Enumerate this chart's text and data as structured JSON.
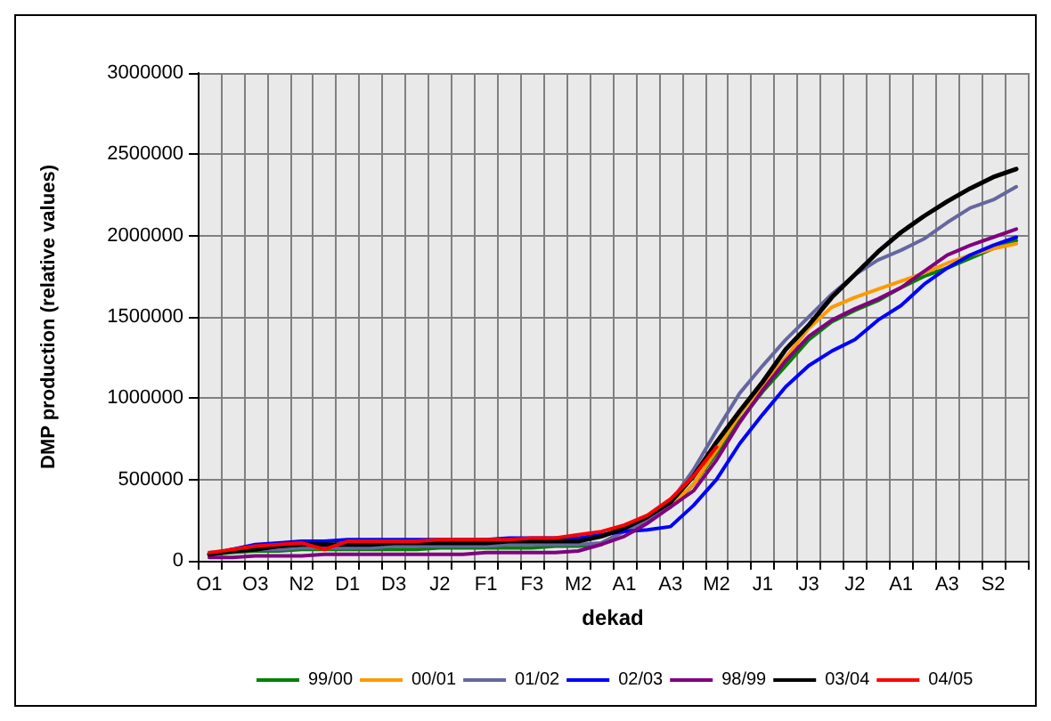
{
  "chart_data": {
    "type": "line",
    "xlabel": "dekad",
    "ylabel": "DMP production (relative values)",
    "categories": [
      "O1",
      null,
      "O3",
      null,
      "N2",
      null,
      "D1",
      null,
      "D3",
      null,
      "J2",
      null,
      "F1",
      null,
      "F3",
      null,
      "M2",
      null,
      "A1",
      null,
      "A3",
      null,
      "M2",
      null,
      "J1",
      null,
      "J3",
      null,
      "J2",
      null,
      "A1",
      null,
      "A3",
      null,
      "S2",
      null
    ],
    "ylim": [
      0,
      3000000
    ],
    "yticks": [
      0,
      500000,
      1000000,
      1500000,
      2000000,
      2500000,
      3000000
    ],
    "grid": true,
    "legend": "bottom",
    "marker": "none",
    "line_style": "solid",
    "series": [
      {
        "name": "99/00",
        "color": "#008000",
        "values": [
          40000,
          50000,
          60000,
          60000,
          70000,
          70000,
          70000,
          70000,
          70000,
          70000,
          80000,
          80000,
          80000,
          80000,
          80000,
          90000,
          90000,
          100000,
          190000,
          250000,
          330000,
          470000,
          660000,
          860000,
          1040000,
          1200000,
          1360000,
          1470000,
          1540000,
          1600000,
          1680000,
          1750000,
          1800000,
          1860000,
          1920000,
          1970000
        ]
      },
      {
        "name": "00/01",
        "color": "#ff9900",
        "values": [
          null,
          null,
          null,
          null,
          null,
          null,
          null,
          null,
          null,
          null,
          null,
          null,
          null,
          null,
          null,
          null,
          null,
          null,
          200000,
          260000,
          340000,
          470000,
          680000,
          900000,
          1080000,
          1250000,
          1430000,
          1560000,
          1620000,
          1670000,
          1720000,
          1770000,
          1830000,
          1880000,
          1920000,
          1950000
        ]
      },
      {
        "name": "01/02",
        "color": "#6666a0",
        "values": [
          50000,
          60000,
          70000,
          70000,
          80000,
          80000,
          80000,
          80000,
          90000,
          90000,
          90000,
          90000,
          90000,
          100000,
          100000,
          100000,
          100000,
          110000,
          180000,
          250000,
          360000,
          560000,
          800000,
          1030000,
          1200000,
          1360000,
          1500000,
          1640000,
          1760000,
          1850000,
          1910000,
          1980000,
          2080000,
          2170000,
          2220000,
          2300000
        ]
      },
      {
        "name": "02/03",
        "color": "#0000ff",
        "values": [
          40000,
          70000,
          100000,
          110000,
          120000,
          120000,
          130000,
          130000,
          130000,
          130000,
          130000,
          130000,
          130000,
          140000,
          140000,
          140000,
          140000,
          160000,
          180000,
          190000,
          210000,
          340000,
          500000,
          720000,
          900000,
          1070000,
          1200000,
          1290000,
          1360000,
          1480000,
          1570000,
          1700000,
          1800000,
          1880000,
          1940000,
          1990000
        ]
      },
      {
        "name": "98/99",
        "color": "#800080",
        "values": [
          20000,
          20000,
          30000,
          30000,
          30000,
          40000,
          40000,
          40000,
          40000,
          40000,
          40000,
          40000,
          50000,
          50000,
          50000,
          50000,
          60000,
          100000,
          150000,
          230000,
          330000,
          430000,
          620000,
          850000,
          1050000,
          1230000,
          1380000,
          1480000,
          1550000,
          1610000,
          1680000,
          1780000,
          1880000,
          1940000,
          1990000,
          2040000
        ]
      },
      {
        "name": "03/04",
        "color": "#000000",
        "values": [
          40000,
          60000,
          70000,
          90000,
          100000,
          100000,
          100000,
          100000,
          110000,
          110000,
          110000,
          110000,
          110000,
          120000,
          120000,
          120000,
          120000,
          150000,
          200000,
          270000,
          360000,
          520000,
          730000,
          920000,
          1100000,
          1300000,
          1450000,
          1620000,
          1760000,
          1900000,
          2020000,
          2120000,
          2210000,
          2290000,
          2360000,
          2410000
        ]
      },
      {
        "name": "04/05",
        "color": "#ff0000",
        "values": [
          50000,
          70000,
          90000,
          100000,
          110000,
          70000,
          120000,
          120000,
          120000,
          120000,
          130000,
          130000,
          130000,
          130000,
          140000,
          140000,
          160000,
          180000,
          220000,
          280000,
          380000,
          520000,
          700000,
          null,
          null,
          null,
          null,
          null,
          null,
          null,
          null,
          null,
          null,
          null,
          null,
          null
        ]
      }
    ]
  }
}
